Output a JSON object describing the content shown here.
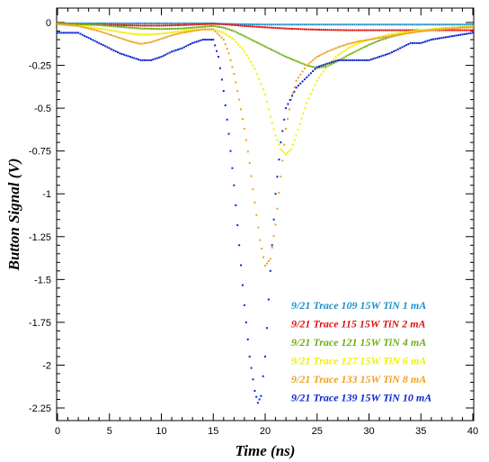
{
  "chart_data": {
    "type": "scatter",
    "title": "",
    "xlabel": "Time (ns)",
    "ylabel": "Button Signal (V)",
    "xlim": [
      0,
      40
    ],
    "ylim": [
      -2.32,
      0.05
    ],
    "x_ticks": [
      "0",
      "5",
      "10",
      "15",
      "20",
      "25",
      "30",
      "35",
      "40"
    ],
    "y_ticks": [
      "0",
      "-0.25",
      "-0.5",
      "-0.75",
      "-1",
      "-1.25",
      "-1.5",
      "-1.75",
      "-2",
      "-2.25"
    ],
    "grid": false,
    "legend_position": "bottom-right",
    "series": [
      {
        "name": "9/21 Trace 109 15W TiN 1 mA",
        "color": "#1e90c8",
        "x": [
          0,
          2,
          4,
          6,
          8,
          10,
          12,
          14,
          15,
          16,
          18,
          20,
          22,
          24,
          26,
          28,
          30,
          32,
          34,
          36,
          38,
          40
        ],
        "y": [
          -0.005,
          -0.005,
          -0.005,
          -0.005,
          -0.005,
          -0.005,
          -0.005,
          -0.005,
          -0.005,
          -0.008,
          -0.01,
          -0.012,
          -0.012,
          -0.012,
          -0.012,
          -0.012,
          -0.012,
          -0.012,
          -0.012,
          -0.012,
          -0.012,
          -0.012
        ]
      },
      {
        "name": "9/21 Trace 115 15W TiN 2 mA",
        "color": "#e01010",
        "x": [
          0,
          2,
          4,
          6,
          8,
          10,
          12,
          14,
          15,
          16,
          17,
          18,
          20,
          22,
          24,
          26,
          28,
          30,
          32,
          34,
          36,
          38,
          40
        ],
        "y": [
          -0.005,
          -0.01,
          -0.013,
          -0.015,
          -0.018,
          -0.018,
          -0.015,
          -0.01,
          -0.008,
          -0.01,
          -0.015,
          -0.02,
          -0.028,
          -0.035,
          -0.04,
          -0.043,
          -0.045,
          -0.045,
          -0.045,
          -0.045,
          -0.045,
          -0.045,
          -0.045
        ]
      },
      {
        "name": "9/21 Trace 121 15W TiN 4 mA",
        "color": "#6ab010",
        "x": [
          0,
          2,
          4,
          6,
          8,
          10,
          12,
          14,
          15,
          16,
          17,
          18,
          19,
          20,
          21,
          22,
          23,
          24,
          25,
          26,
          27,
          28,
          29,
          30,
          31,
          32,
          33,
          34,
          35,
          36,
          37,
          38,
          39,
          40
        ],
        "y": [
          -0.005,
          -0.01,
          -0.015,
          -0.025,
          -0.035,
          -0.038,
          -0.035,
          -0.025,
          -0.02,
          -0.03,
          -0.05,
          -0.08,
          -0.11,
          -0.14,
          -0.17,
          -0.2,
          -0.225,
          -0.25,
          -0.265,
          -0.255,
          -0.225,
          -0.19,
          -0.16,
          -0.13,
          -0.105,
          -0.085,
          -0.07,
          -0.058,
          -0.048,
          -0.04,
          -0.034,
          -0.03,
          -0.027,
          -0.025
        ]
      },
      {
        "name": "9/21 Trace 127 15W TiN 6 mA",
        "color": "#f0f000",
        "x": [
          0,
          2,
          4,
          5,
          6,
          7,
          8,
          9,
          10,
          11,
          12,
          13,
          14,
          15,
          16,
          17,
          18,
          19,
          20,
          20.5,
          21,
          21.5,
          22,
          22.5,
          23,
          23.5,
          24,
          25,
          26,
          27,
          28,
          29,
          30,
          31,
          32,
          33,
          34,
          35,
          36,
          37,
          38,
          39,
          40
        ],
        "y": [
          -0.01,
          -0.02,
          -0.035,
          -0.045,
          -0.055,
          -0.065,
          -0.07,
          -0.07,
          -0.065,
          -0.058,
          -0.05,
          -0.043,
          -0.04,
          -0.04,
          -0.06,
          -0.1,
          -0.17,
          -0.27,
          -0.42,
          -0.55,
          -0.66,
          -0.74,
          -0.77,
          -0.74,
          -0.66,
          -0.56,
          -0.47,
          -0.34,
          -0.25,
          -0.19,
          -0.15,
          -0.12,
          -0.1,
          -0.085,
          -0.07,
          -0.06,
          -0.052,
          -0.045,
          -0.04,
          -0.035,
          -0.03,
          -0.028,
          -0.025
        ]
      },
      {
        "name": "9/21 Trace 133 15W TiN 8 mA",
        "color": "#f0a020",
        "x": [
          0,
          2,
          3,
          4,
          5,
          6,
          7,
          8,
          9,
          10,
          11,
          12,
          13,
          14,
          15,
          16,
          16.5,
          17,
          17.5,
          18,
          18.5,
          19,
          19.5,
          20,
          20.5,
          21,
          21.5,
          22,
          22.5,
          23,
          24,
          25,
          26,
          27,
          28,
          29,
          30,
          31,
          32,
          33,
          34,
          35,
          36,
          37,
          38,
          39,
          40
        ],
        "y": [
          -0.01,
          -0.02,
          -0.035,
          -0.05,
          -0.07,
          -0.09,
          -0.11,
          -0.125,
          -0.115,
          -0.095,
          -0.075,
          -0.06,
          -0.05,
          -0.04,
          -0.04,
          -0.1,
          -0.18,
          -0.3,
          -0.45,
          -0.62,
          -0.82,
          -1.05,
          -1.27,
          -1.42,
          -1.38,
          -1.18,
          -0.9,
          -0.62,
          -0.45,
          -0.34,
          -0.25,
          -0.2,
          -0.17,
          -0.145,
          -0.125,
          -0.11,
          -0.1,
          -0.09,
          -0.08,
          -0.07,
          -0.06,
          -0.052,
          -0.045,
          -0.04,
          -0.035,
          -0.03,
          -0.028
        ]
      },
      {
        "name": "9/21 Trace 139 15W TiN 10 mA",
        "color": "#0a24d0",
        "x": [
          0,
          2,
          3,
          4,
          5,
          6,
          7,
          8,
          9,
          10,
          11,
          12,
          13,
          14,
          15,
          15.5,
          16,
          16.5,
          17,
          17.5,
          18,
          18.5,
          19,
          19.3,
          19.6,
          20,
          20.5,
          21,
          21.5,
          22,
          23,
          24,
          25,
          26,
          27,
          28,
          29,
          30,
          31,
          32,
          33,
          34,
          35,
          36,
          37,
          38,
          39,
          40
        ],
        "y": [
          -0.06,
          -0.06,
          -0.09,
          -0.12,
          -0.15,
          -0.18,
          -0.2,
          -0.22,
          -0.22,
          -0.2,
          -0.17,
          -0.15,
          -0.12,
          -0.1,
          -0.1,
          -0.2,
          -0.4,
          -0.65,
          -0.95,
          -1.3,
          -1.65,
          -1.95,
          -2.15,
          -2.22,
          -2.18,
          -1.95,
          -1.45,
          -1.0,
          -0.7,
          -0.5,
          -0.38,
          -0.32,
          -0.26,
          -0.24,
          -0.22,
          -0.22,
          -0.22,
          -0.22,
          -0.2,
          -0.18,
          -0.15,
          -0.12,
          -0.12,
          -0.1,
          -0.09,
          -0.08,
          -0.07,
          -0.06
        ]
      }
    ]
  }
}
